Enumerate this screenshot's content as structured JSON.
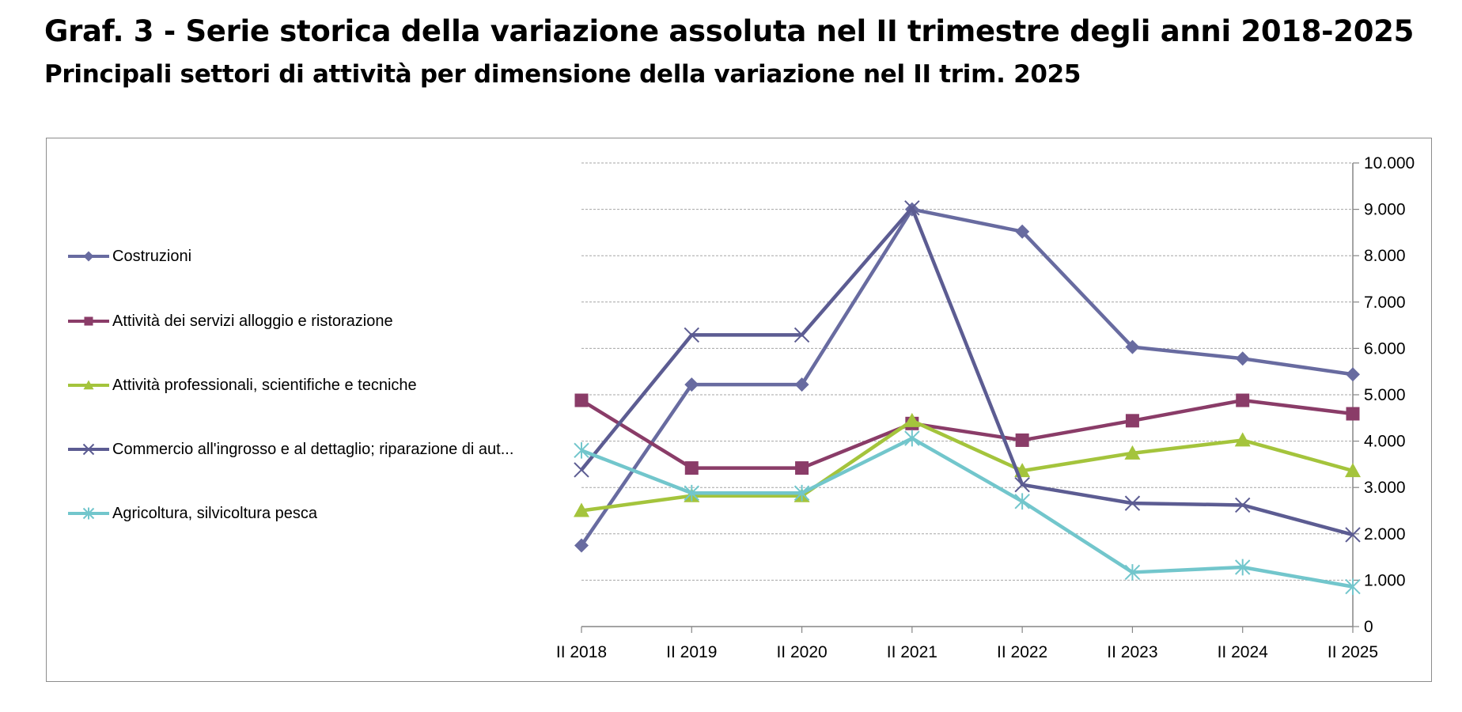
{
  "header": {
    "title": "Graf. 3 - Serie storica della variazione assoluta nel II trimestre degli anni 2018-2025",
    "subtitle": "Principali settori di attività per dimensione della variazione nel II trim. 2025"
  },
  "chart_data": {
    "type": "line",
    "title": "Graf. 3 - Serie storica della variazione assoluta nel II trimestre degli anni 2018-2025",
    "subtitle": "Principali settori di attività per dimensione della variazione nel II trim. 2025",
    "xlabel": "",
    "ylabel": "",
    "categories": [
      "II 2018",
      "II 2019",
      "II 2020",
      "II 2021",
      "II 2022",
      "II 2023",
      "II 2024",
      "II 2025"
    ],
    "ylim": [
      0,
      10000
    ],
    "yticks": [
      "0",
      "1.000",
      "2.000",
      "3.000",
      "4.000",
      "5.000",
      "6.000",
      "7.000",
      "8.000",
      "9.000",
      "10.000"
    ],
    "y_axis_side": "right",
    "grid": true,
    "legend_position": "left",
    "series": [
      {
        "name": "Costruzioni",
        "marker": "diamond",
        "color": "#686ba0",
        "values": [
          1750,
          5220,
          5220,
          9000,
          8520,
          6030,
          5780,
          5440
        ]
      },
      {
        "name": "Attività dei servizi alloggio e ristorazione",
        "marker": "square",
        "color": "#8a3c68",
        "values": [
          4880,
          3420,
          3420,
          4380,
          4020,
          4440,
          4880,
          4590
        ]
      },
      {
        "name": "Attività professionali, scientifiche e tecniche",
        "marker": "triangle",
        "color": "#a4c43c",
        "values": [
          2500,
          2820,
          2820,
          4440,
          3360,
          3740,
          4020,
          3360
        ]
      },
      {
        "name": "Commercio all'ingrosso e al dettaglio; riparazione di aut...",
        "marker": "x",
        "color": "#5c5c92",
        "values": [
          3380,
          6290,
          6290,
          9030,
          3060,
          2660,
          2620,
          1980
        ]
      },
      {
        "name": "Agricoltura, silvicoltura pesca",
        "marker": "star",
        "color": "#72c6cc",
        "values": [
          3800,
          2880,
          2880,
          4060,
          2700,
          1170,
          1280,
          860
        ]
      }
    ]
  }
}
